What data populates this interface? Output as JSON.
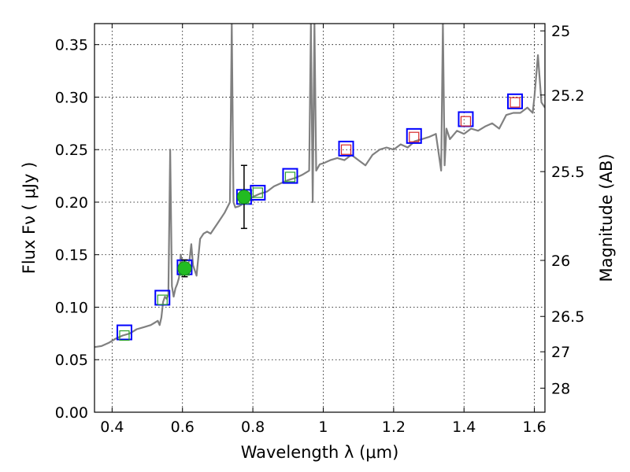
{
  "chart_data": {
    "type": "line",
    "title": "",
    "xlabel": "Wavelength  λ (μm)",
    "ylabel": "Flux  Fν  ( μJy )",
    "ylabel_right": "Magnitude (AB)",
    "xlim": [
      0.35,
      1.63
    ],
    "ylim": [
      0.0,
      0.37
    ],
    "grid": true,
    "x_ticks": [
      0.4,
      0.6,
      0.8,
      1.0,
      1.2,
      1.4,
      1.6
    ],
    "x_tick_labels": [
      "0.4",
      "0.6",
      "0.8",
      "1",
      "1.2",
      "1.4",
      "1.6"
    ],
    "y_ticks": [
      0.0,
      0.05,
      0.1,
      0.15,
      0.2,
      0.25,
      0.3,
      0.35
    ],
    "y_tick_labels": [
      "0.00",
      "0.05",
      "0.10",
      "0.15",
      "0.20",
      "0.25",
      "0.30",
      "0.35"
    ],
    "mag_ticks": [
      {
        "mag": 25,
        "label": "25"
      },
      {
        "mag": 25.2,
        "label": "25.2"
      },
      {
        "mag": 25.5,
        "label": "25.5"
      },
      {
        "mag": 26,
        "label": "26"
      },
      {
        "mag": 26.5,
        "label": "26.5"
      },
      {
        "mag": 27,
        "label": "27"
      },
      {
        "mag": 28,
        "label": "28"
      }
    ],
    "colors": {
      "model": "#808080",
      "filter_box": "#0000ff",
      "optical_model_box": "#2ca02c",
      "ir_model_box": "#d62728",
      "photometry": "#22bb22",
      "errorbar": "#000000"
    },
    "series": [
      {
        "name": "model spectrum",
        "style": "line",
        "x": [
          0.35,
          0.37,
          0.39,
          0.41,
          0.43,
          0.45,
          0.47,
          0.49,
          0.51,
          0.52,
          0.53,
          0.535,
          0.54,
          0.545,
          0.55,
          0.555,
          0.56,
          0.565,
          0.57,
          0.575,
          0.58,
          0.585,
          0.59,
          0.595,
          0.6,
          0.61,
          0.62,
          0.625,
          0.63,
          0.64,
          0.65,
          0.66,
          0.67,
          0.68,
          0.69,
          0.7,
          0.72,
          0.735,
          0.74,
          0.745,
          0.75,
          0.76,
          0.78,
          0.8,
          0.82,
          0.84,
          0.86,
          0.88,
          0.9,
          0.92,
          0.94,
          0.96,
          0.965,
          0.97,
          0.975,
          0.98,
          0.99,
          1.0,
          1.02,
          1.04,
          1.06,
          1.08,
          1.1,
          1.12,
          1.14,
          1.16,
          1.18,
          1.2,
          1.22,
          1.24,
          1.26,
          1.28,
          1.3,
          1.32,
          1.335,
          1.34,
          1.345,
          1.35,
          1.36,
          1.38,
          1.4,
          1.42,
          1.44,
          1.46,
          1.48,
          1.5,
          1.52,
          1.54,
          1.56,
          1.58,
          1.595,
          1.6,
          1.61,
          1.62,
          1.63
        ],
        "y": [
          0.062,
          0.063,
          0.066,
          0.07,
          0.073,
          0.075,
          0.079,
          0.081,
          0.083,
          0.085,
          0.087,
          0.083,
          0.09,
          0.105,
          0.11,
          0.108,
          0.112,
          0.25,
          0.12,
          0.11,
          0.118,
          0.122,
          0.128,
          0.15,
          0.14,
          0.135,
          0.145,
          0.16,
          0.14,
          0.13,
          0.165,
          0.17,
          0.172,
          0.17,
          0.175,
          0.18,
          0.19,
          0.2,
          0.37,
          0.2,
          0.195,
          0.196,
          0.2,
          0.205,
          0.208,
          0.21,
          0.215,
          0.218,
          0.221,
          0.223,
          0.226,
          0.23,
          0.37,
          0.2,
          0.37,
          0.23,
          0.236,
          0.237,
          0.24,
          0.242,
          0.24,
          0.245,
          0.24,
          0.235,
          0.245,
          0.25,
          0.252,
          0.25,
          0.255,
          0.252,
          0.258,
          0.26,
          0.262,
          0.265,
          0.23,
          0.37,
          0.235,
          0.27,
          0.26,
          0.268,
          0.265,
          0.27,
          0.268,
          0.272,
          0.275,
          0.27,
          0.283,
          0.285,
          0.285,
          0.29,
          0.285,
          0.3,
          0.34,
          0.295,
          0.29
        ]
      },
      {
        "name": "filter bandpass boxes",
        "style": "open-square",
        "x": [
          0.435,
          0.543,
          0.606,
          0.775,
          0.814,
          0.906,
          1.065,
          1.258,
          1.405,
          1.545
        ],
        "y": [
          0.076,
          0.109,
          0.138,
          0.205,
          0.209,
          0.225,
          0.251,
          0.263,
          0.279,
          0.296
        ]
      },
      {
        "name": "model in band (optical)",
        "style": "small-open-square",
        "x": [
          0.435,
          0.543,
          0.606,
          0.775,
          0.814,
          0.906
        ],
        "y": [
          0.073,
          0.107,
          0.135,
          0.203,
          0.209,
          0.224
        ]
      },
      {
        "name": "model in band (IR)",
        "style": "small-open-square",
        "x": [
          1.065,
          1.258,
          1.405,
          1.545
        ],
        "y": [
          0.25,
          0.262,
          0.277,
          0.295
        ]
      },
      {
        "name": "photometry",
        "style": "filled-circle",
        "x": [
          0.606,
          0.775
        ],
        "y": [
          0.137,
          0.205
        ],
        "yerr": [
          0.008,
          0.03
        ]
      }
    ]
  }
}
